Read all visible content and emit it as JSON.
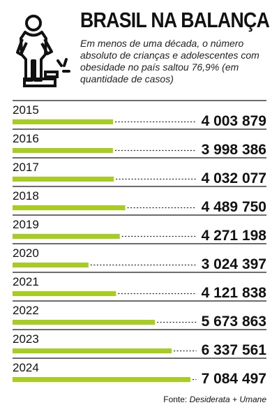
{
  "header": {
    "title": "BRASIL NA BALANÇA",
    "subtitle": "Em menos de uma década, o número absoluto de crianças e adolescentes com obesidade no país saltou 76,9% (em quantidade de casos)",
    "icon": "scale-icon"
  },
  "chart_data": {
    "type": "bar",
    "orientation": "horizontal",
    "title": "BRASIL NA BALANÇA",
    "subtitle": "Em menos de uma década, o número absoluto de crianças e adolescentes com obesidade no país saltou 76,9% (em quantidade de casos)",
    "categories": [
      "2015",
      "2016",
      "2017",
      "2018",
      "2019",
      "2020",
      "2021",
      "2022",
      "2023",
      "2024"
    ],
    "series": [
      {
        "values": [
          4003879,
          3998386,
          4032077,
          4489750,
          4271198,
          3024397,
          4121838,
          5673863,
          6337561,
          7084497
        ]
      }
    ],
    "value_labels": [
      "4 003 879",
      "3 998 386",
      "4 032 077",
      "4 489 750",
      "4 271 198",
      "3 024 397",
      "4 121 838",
      "5 673 863",
      "6 337 561",
      "7 084 497"
    ],
    "xlim": [
      0,
      7084497
    ],
    "grid": false,
    "legend": "none"
  },
  "colors": {
    "bar": "#a7cd22",
    "text": "#111111",
    "rule": "#151515",
    "background": "#ffffff"
  },
  "source": {
    "label": "Fonte:",
    "publishers": "Desiderata + Umane"
  }
}
